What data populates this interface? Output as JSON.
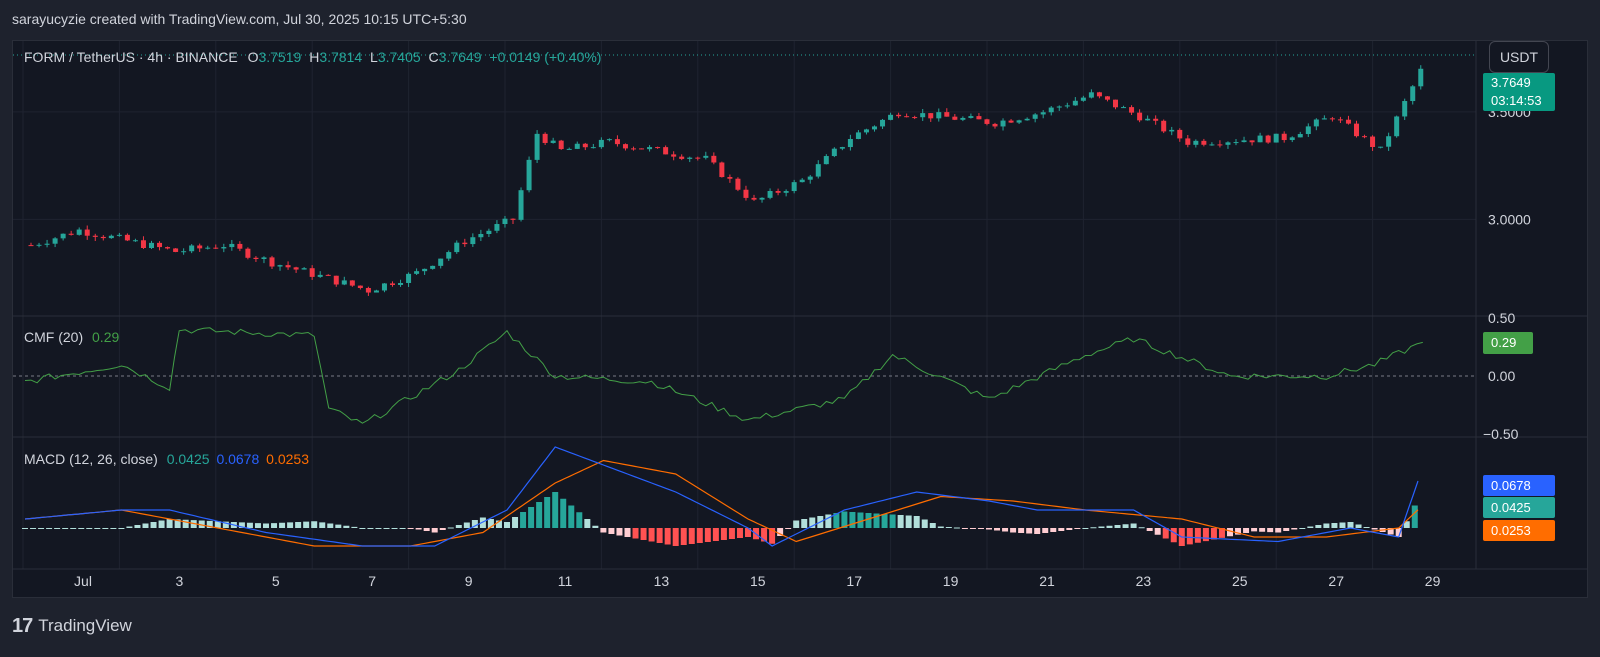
{
  "header": {
    "credit": "sarayucyzie created with TradingView.com, Jul 30, 2025 10:15 UTC+5:30"
  },
  "main_legend": {
    "symbol": "FORM / TetherUS · 4h · BINANCE",
    "o_label": "O",
    "o_value": "3.7519",
    "h_label": "H",
    "h_value": "3.7814",
    "l_label": "L",
    "l_value": "3.7405",
    "c_label": "C",
    "c_value": "3.7649",
    "change": "+0.0149 (+0.40%)"
  },
  "currency_button": "USDT",
  "price_tag": {
    "price": "3.7649",
    "countdown": "03:14:53"
  },
  "cmf_legend": {
    "name": "CMF (20)",
    "value": "0.29"
  },
  "cmf_tag": "0.29",
  "macd_legend": {
    "name": "MACD (12, 26, close)",
    "hist": "0.0425",
    "macd": "0.0678",
    "signal": "0.0253"
  },
  "macd_tags": {
    "macd": "0.0678",
    "hist": "0.0425",
    "signal": "0.0253"
  },
  "footer": {
    "brand": "TradingView",
    "logo": "17"
  },
  "colors": {
    "up": "#26a69a",
    "down": "#f23645",
    "cmf": "#43a047",
    "macd": "#2962ff",
    "signal": "#ff6d00",
    "background": "#131722"
  },
  "chart_data": [
    {
      "type": "candlestick",
      "title": "FORM / TetherUS · 4h · BINANCE",
      "x_ticks": [
        "Jul",
        "3",
        "5",
        "7",
        "9",
        "11",
        "13",
        "15",
        "17",
        "19",
        "21",
        "23",
        "25",
        "27",
        "29"
      ],
      "y_ticks": [
        "3.5000",
        "3.0000"
      ],
      "ylim": [
        2.55,
        3.83
      ],
      "key_points": [
        {
          "date": "Jul 1",
          "close": 2.88
        },
        {
          "date": "Jul 2",
          "close": 2.95
        },
        {
          "date": "Jul 4",
          "close": 2.85
        },
        {
          "date": "Jul 5",
          "close": 2.88
        },
        {
          "date": "Jul 6",
          "close": 2.8
        },
        {
          "date": "Jul 8",
          "close": 2.67
        },
        {
          "date": "Jul 9",
          "close": 2.75
        },
        {
          "date": "Jul 10",
          "close": 2.9
        },
        {
          "date": "Jul 11",
          "close": 3.0
        },
        {
          "date": "Jul 11.5",
          "close": 3.4
        },
        {
          "date": "Jul 12",
          "close": 3.32
        },
        {
          "date": "Jul 13",
          "close": 3.36
        },
        {
          "date": "Jul 15",
          "close": 3.28
        },
        {
          "date": "Jul 16",
          "close": 3.08
        },
        {
          "date": "Jul 17",
          "close": 3.18
        },
        {
          "date": "Jul 18",
          "close": 3.38
        },
        {
          "date": "Jul 19",
          "close": 3.5
        },
        {
          "date": "Jul 21",
          "close": 3.45
        },
        {
          "date": "Jul 22",
          "close": 3.5
        },
        {
          "date": "Jul 23",
          "close": 3.58
        },
        {
          "date": "Jul 24",
          "close": 3.48
        },
        {
          "date": "Jul 25",
          "close": 3.36
        },
        {
          "date": "Jul 27",
          "close": 3.38
        },
        {
          "date": "Jul 28",
          "close": 3.48
        },
        {
          "date": "Jul 29",
          "close": 3.32
        },
        {
          "date": "Jul 30",
          "close": 3.7649
        }
      ],
      "last": {
        "open": 3.7519,
        "high": 3.7814,
        "low": 3.7405,
        "close": 3.7649
      }
    },
    {
      "type": "line",
      "title": "CMF (20)",
      "y_ticks": [
        "0.50",
        "0.00",
        "−0.50"
      ],
      "ylim": [
        -0.55,
        0.55
      ],
      "series": [
        {
          "name": "CMF (20)",
          "key_points": [
            {
              "date": "Jul 1",
              "value": -0.05
            },
            {
              "date": "Jul 3",
              "value": 0.1
            },
            {
              "date": "Jul 4",
              "value": -0.1
            },
            {
              "date": "Jul 4.2",
              "value": 0.4
            },
            {
              "date": "Jul 7",
              "value": 0.35
            },
            {
              "date": "Jul 7.3",
              "value": -0.28
            },
            {
              "date": "Jul 8",
              "value": -0.42
            },
            {
              "date": "Jul 10",
              "value": 0.05
            },
            {
              "date": "Jul 11",
              "value": 0.38
            },
            {
              "date": "Jul 12",
              "value": 0.0
            },
            {
              "date": "Jul 14",
              "value": -0.05
            },
            {
              "date": "Jul 16",
              "value": -0.38
            },
            {
              "date": "Jul 18",
              "value": -0.2
            },
            {
              "date": "Jul 19",
              "value": 0.18
            },
            {
              "date": "Jul 21",
              "value": -0.2
            },
            {
              "date": "Jul 23",
              "value": 0.18
            },
            {
              "date": "Jul 24",
              "value": 0.32
            },
            {
              "date": "Jul 26",
              "value": 0.0
            },
            {
              "date": "Jul 28",
              "value": 0.0
            },
            {
              "date": "Jul 29",
              "value": 0.1
            },
            {
              "date": "Jul 30",
              "value": 0.29
            }
          ]
        }
      ]
    },
    {
      "type": "line+bar",
      "title": "MACD (12, 26, close)",
      "series": [
        {
          "name": "MACD",
          "last": 0.0678
        },
        {
          "name": "Signal",
          "last": 0.0253
        },
        {
          "name": "Histogram",
          "last": 0.0425
        }
      ]
    }
  ]
}
